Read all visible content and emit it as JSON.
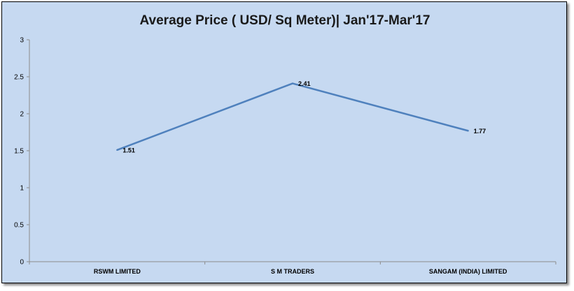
{
  "chart_data": {
    "type": "line",
    "title": "Average Price ( USD/ Sq Meter)| Jan'17-Mar'17",
    "categories": [
      "RSWM LIMITED",
      "S M TRADERS",
      "SANGAM (INDIA) LIMITED"
    ],
    "series": [
      {
        "values": [
          1.51,
          2.41,
          1.77
        ],
        "labels": [
          "1.51",
          "2.41",
          "1.77"
        ],
        "color": "#4f81bd"
      }
    ],
    "ylim": [
      0,
      3
    ],
    "yticks": [
      "0",
      "0.5",
      "1",
      "1.5",
      "2",
      "2.5",
      "3"
    ],
    "grid": false,
    "legend": "none"
  }
}
